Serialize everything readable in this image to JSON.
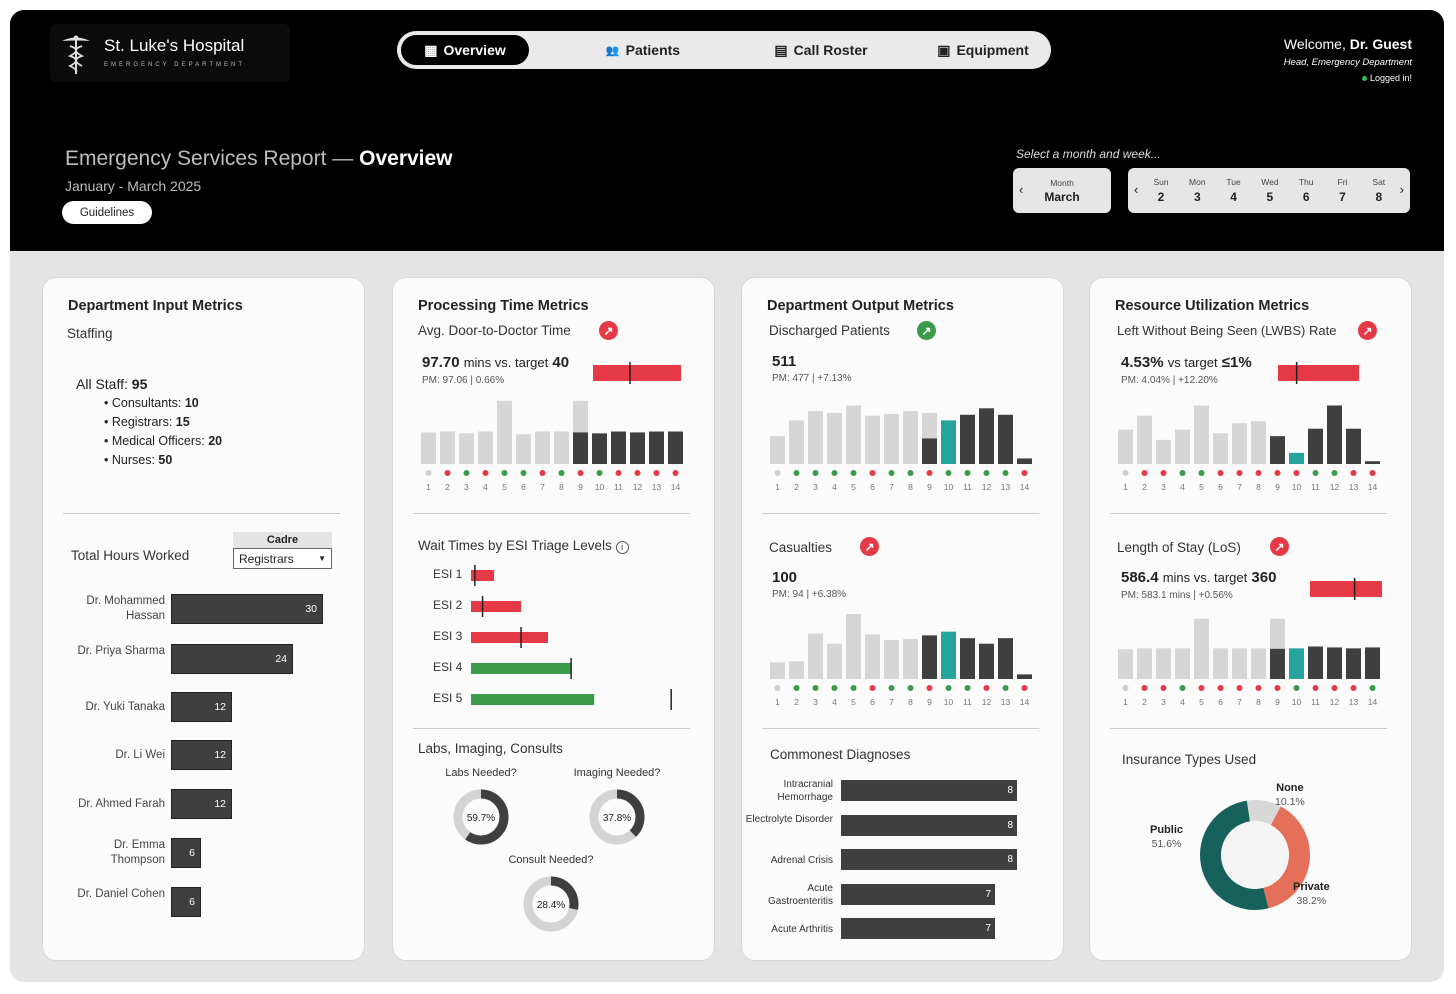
{
  "header": {
    "hospital": "St. Luke's Hospital",
    "department": "EMERGENCY DEPARTMENT",
    "nav": [
      {
        "label": "Overview",
        "icon": "grid-icon",
        "active": true
      },
      {
        "label": "Patients",
        "icon": "users-icon",
        "active": false
      },
      {
        "label": "Call Roster",
        "icon": "clipboard-icon",
        "active": false
      },
      {
        "label": "Equipment",
        "icon": "medkit-icon",
        "active": false
      }
    ],
    "welcome_prefix": "Welcome,",
    "welcome_name": "Dr. Guest",
    "role": "Head, Emergency Department",
    "status": "Logged in!",
    "report_title_a": "Emergency Services Report —",
    "report_title_b": "Overview",
    "report_range": "January - March 2025",
    "guidelines_label": "Guidelines",
    "select_prompt": "Select a month and week...",
    "month_label": "Month",
    "month_value": "March",
    "week": [
      {
        "d": "Sun",
        "n": "2"
      },
      {
        "d": "Mon",
        "n": "3"
      },
      {
        "d": "Tue",
        "n": "4"
      },
      {
        "d": "Wed",
        "n": "5"
      },
      {
        "d": "Thu",
        "n": "6"
      },
      {
        "d": "Fri",
        "n": "7"
      },
      {
        "d": "Sat",
        "n": "8"
      }
    ]
  },
  "colors": {
    "bar_dark": "#3f3f3f",
    "bar_light": "#d6d6d6",
    "teal": "#27a39e",
    "red": "#e53945",
    "green": "#3a9b4b",
    "pie_public": "#16615c",
    "pie_private": "#e5705a",
    "pie_none": "#d8d8d8"
  },
  "input_card": {
    "title": "Department Input Metrics",
    "subtitle": "Staffing",
    "all_staff_label": "All Staff:",
    "all_staff_value": "95",
    "staff": [
      {
        "label": "Consultants:",
        "value": "10"
      },
      {
        "label": "Registrars:",
        "value": "15"
      },
      {
        "label": "Medical Officers:",
        "value": "20"
      },
      {
        "label": "Nurses:",
        "value": "50"
      }
    ],
    "hours_title": "Total Hours Worked",
    "cadre_label": "Cadre",
    "cadre_value": "Registrars",
    "hours": [
      {
        "name": "Dr. Mohammed Hassan",
        "value": 30
      },
      {
        "name": "Dr. Priya Sharma",
        "value": 24
      },
      {
        "name": "Dr. Yuki Tanaka",
        "value": 12
      },
      {
        "name": "Dr. Li Wei",
        "value": 12
      },
      {
        "name": "Dr. Ahmed Farah",
        "value": 12
      },
      {
        "name": "Dr. Emma Thompson",
        "value": 6
      },
      {
        "name": "Dr. Daniel Cohen",
        "value": 6
      }
    ]
  },
  "processing_card": {
    "title": "Processing Time Metrics",
    "metric_label": "Avg. Door-to-Doctor Time",
    "value": "97.70",
    "value_suffix": "mins vs. target",
    "target": "40",
    "pm_text": "PM: 97.06 | 0.66%",
    "esi_title": "Wait Times by ESI Triage Levels",
    "esi": [
      {
        "label": "ESI 1",
        "value": 6,
        "target": 1,
        "status": "red"
      },
      {
        "label": "ESI 2",
        "value": 13,
        "target": 3,
        "status": "red"
      },
      {
        "label": "ESI 3",
        "value": 20,
        "target": 13,
        "status": "red"
      },
      {
        "label": "ESI 4",
        "value": 26,
        "target": 26,
        "status": "green"
      },
      {
        "label": "ESI 5",
        "value": 32,
        "target": 52,
        "status": "green"
      }
    ],
    "labs_title": "Labs, Imaging, Consults",
    "donuts": [
      {
        "label": "Labs Needed?",
        "pct": 59.7,
        "text": "59.7%"
      },
      {
        "label": "Imaging Needed?",
        "pct": 37.8,
        "text": "37.8%"
      },
      {
        "label": "Consult Needed?",
        "pct": 28.4,
        "text": "28.4%"
      }
    ]
  },
  "output_card": {
    "title": "Department Output Metrics",
    "metric_label": "Discharged Patients",
    "value": "511",
    "pm_text": "PM: 477 | +7.13%",
    "casualties_label": "Casualties",
    "casualties_value": "100",
    "casualties_pm": "PM: 94 | +6.38%",
    "diag_title": "Commonest Diagnoses",
    "diagnoses": [
      {
        "name": "Intracranial Hemorrhage",
        "value": 8
      },
      {
        "name": "Electrolyte Disorder",
        "value": 8
      },
      {
        "name": "Adrenal Crisis",
        "value": 8
      },
      {
        "name": "Acute Gastroenteritis",
        "value": 7
      },
      {
        "name": "Acute Arthritis",
        "value": 7
      }
    ]
  },
  "resource_card": {
    "title": "Resource Utilization Metrics",
    "metric_label": "Left Without Being Seen (LWBS) Rate",
    "value": "4.53%",
    "value_suffix": "vs target",
    "target": "≤1%",
    "pm_text": "PM: 4.04% | +12.20%",
    "los_label": "Length of Stay (LoS)",
    "los_value": "586.4",
    "los_suffix": "mins vs. target",
    "los_target": "360",
    "los_pm": "PM: 583.1 mins | +0.56%",
    "ins_title": "Insurance Types Used"
  },
  "chart_data": [
    {
      "type": "bar",
      "title": "Avg. Door-to-Doctor Time",
      "categories": [
        "1",
        "2",
        "3",
        "4",
        "5",
        "6",
        "7",
        "8",
        "9",
        "10",
        "11",
        "12",
        "13",
        "14"
      ],
      "values": [
        34,
        35,
        33,
        35,
        68,
        32,
        35,
        35,
        68,
        33,
        35,
        34,
        35,
        35
      ],
      "highlight": [
        9
      ],
      "current_week": [
        9,
        10,
        11,
        12,
        13,
        14
      ],
      "status": [
        "n",
        "r",
        "g",
        "r",
        "g",
        "g",
        "r",
        "g",
        "r",
        "g",
        "r",
        "r",
        "r",
        "r"
      ],
      "bullet": {
        "value": 97.7,
        "target": 40
      }
    },
    {
      "type": "bar",
      "title": "Discharged Patients",
      "categories": [
        "1",
        "2",
        "3",
        "4",
        "5",
        "6",
        "7",
        "8",
        "9",
        "10",
        "11",
        "12",
        "13",
        "14"
      ],
      "values": [
        30,
        47,
        57,
        55,
        63,
        52,
        54,
        57,
        55,
        47,
        53,
        60,
        53,
        6
      ],
      "highlight": [
        10
      ],
      "current_week": [
        9,
        10,
        11,
        12,
        13,
        14
      ],
      "status": [
        "n",
        "g",
        "g",
        "g",
        "g",
        "r",
        "g",
        "g",
        "r",
        "g",
        "g",
        "g",
        "g",
        "r"
      ]
    },
    {
      "type": "bar",
      "title": "Casualties",
      "categories": [
        "1",
        "2",
        "3",
        "4",
        "5",
        "6",
        "7",
        "8",
        "9",
        "10",
        "11",
        "12",
        "13",
        "14"
      ],
      "values": [
        18,
        19,
        49,
        38,
        70,
        48,
        42,
        43,
        47,
        51,
        44,
        38,
        44,
        5
      ],
      "highlight": [
        10
      ],
      "current_week": [
        9,
        10,
        11,
        12,
        13,
        14
      ],
      "status": [
        "n",
        "g",
        "g",
        "g",
        "g",
        "r",
        "g",
        "g",
        "r",
        "g",
        "g",
        "r",
        "g",
        "r"
      ]
    },
    {
      "type": "bar",
      "title": "Left Without Being Seen (LWBS) Rate",
      "categories": [
        "1",
        "2",
        "3",
        "4",
        "5",
        "6",
        "7",
        "8",
        "9",
        "10",
        "11",
        "12",
        "13",
        "14"
      ],
      "values": [
        37,
        52,
        26,
        37,
        63,
        33,
        44,
        46,
        30,
        12,
        38,
        63,
        38,
        3
      ],
      "highlight": [
        10
      ],
      "current_week": [
        9,
        10,
        11,
        12,
        13,
        14
      ],
      "status": [
        "n",
        "r",
        "r",
        "g",
        "g",
        "r",
        "r",
        "r",
        "r",
        "r",
        "g",
        "g",
        "r",
        "r"
      ],
      "bullet": {
        "value": 4.53,
        "target": 1
      }
    },
    {
      "type": "bar",
      "title": "Length of Stay (LoS)",
      "categories": [
        "1",
        "2",
        "3",
        "4",
        "5",
        "6",
        "7",
        "8",
        "9",
        "10",
        "11",
        "12",
        "13",
        "14"
      ],
      "values": [
        32,
        33,
        33,
        33,
        65,
        33,
        33,
        33,
        65,
        33,
        35,
        34,
        33,
        34
      ],
      "highlight": [
        10
      ],
      "current_week": [
        9,
        10,
        11,
        12,
        13,
        14
      ],
      "status": [
        "n",
        "r",
        "r",
        "g",
        "r",
        "r",
        "r",
        "r",
        "r",
        "g",
        "r",
        "r",
        "r",
        "g"
      ],
      "bullet": {
        "value": 586.4,
        "target": 360
      }
    },
    {
      "type": "pie",
      "title": "Insurance Types Used",
      "slices": [
        {
          "name": "Public",
          "value": 51.6
        },
        {
          "name": "Private",
          "value": 38.2
        },
        {
          "name": "None",
          "value": 10.1
        }
      ],
      "labels": [
        "51.6%",
        "38.2%",
        "10.1%"
      ]
    }
  ]
}
